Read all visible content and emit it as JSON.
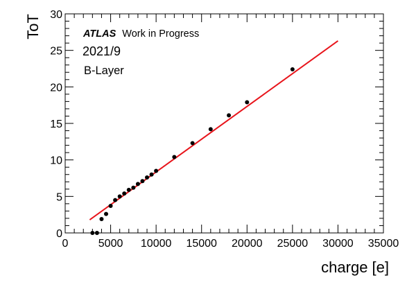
{
  "chart_data": {
    "type": "scatter",
    "xlabel": "charge [e]",
    "ylabel": "ToT",
    "xlim": [
      0,
      35000
    ],
    "ylim": [
      0,
      30
    ],
    "x_ticks": [
      0,
      5000,
      10000,
      15000,
      20000,
      25000,
      30000,
      35000
    ],
    "y_ticks": [
      0,
      5,
      10,
      15,
      20,
      25,
      30
    ],
    "grid": false,
    "colors": {
      "points": "#000000",
      "fit": "#e8141b"
    },
    "annotations": {
      "experiment_bold": "ATLAS",
      "experiment_rest": "Work in Progress",
      "date": "2021/9",
      "layer": "B-Layer"
    },
    "series": [
      {
        "type": "scatter",
        "x": [
          3000,
          3500,
          4000,
          4500,
          5000,
          5500,
          6000,
          6500,
          7000,
          7500,
          8000,
          8500,
          9000,
          9500,
          10000,
          12000,
          14000,
          16000,
          18000,
          20000,
          25000
        ],
        "y": [
          0.0,
          0.0,
          1.9,
          2.6,
          3.7,
          4.5,
          5.0,
          5.4,
          5.9,
          6.2,
          6.7,
          7.1,
          7.6,
          8.0,
          8.5,
          10.4,
          12.3,
          14.2,
          16.1,
          17.9,
          22.4
        ]
      },
      {
        "type": "line",
        "x": [
          2700,
          30000
        ],
        "y": [
          1.8,
          26.3
        ]
      }
    ]
  }
}
